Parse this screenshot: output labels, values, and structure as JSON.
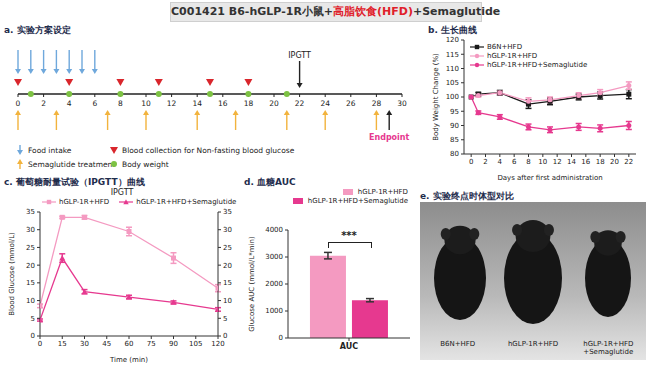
{
  "title": {
    "parts": [
      {
        "text": "C001421 B6-hGLP-1R小鼠+",
        "color": "#333333"
      },
      {
        "text": "高脂饮食(HFD)",
        "color": "#e0202a"
      },
      {
        "text": "+Semaglutide",
        "color": "#333333"
      }
    ]
  },
  "timeline": {
    "title": "a. 实验方案设定",
    "lim": [
      0,
      30
    ],
    "ticks": [
      0,
      2,
      4,
      6,
      8,
      10,
      12,
      14,
      16,
      18,
      20,
      22,
      24,
      26,
      28,
      30
    ],
    "events": [
      {
        "name": "Food intake",
        "marker": "arrow_down",
        "color": "#6fa8dc",
        "days": [
          0,
          1,
          2,
          3,
          4,
          5,
          6
        ]
      },
      {
        "name": "Blood collection for Non-fasting blood glucose",
        "marker": "triangle_down",
        "color": "#d9262c",
        "days": [
          0,
          4,
          8,
          11,
          15,
          18
        ]
      },
      {
        "name": "Semaglutide treatment",
        "marker": "arrow_up",
        "color": "#f2b33d",
        "days": [
          0,
          3,
          7,
          10,
          14,
          17,
          21,
          24,
          28
        ]
      },
      {
        "name": "Body weight",
        "marker": "dot",
        "color": "#7dc243",
        "days": [
          1,
          4,
          8,
          11,
          15,
          18,
          21
        ]
      }
    ],
    "markers": [
      {
        "label": "IPGTT",
        "day": 22,
        "marker": "arrow_down",
        "color": "#222222"
      },
      {
        "label": "Endpoint",
        "day": 29,
        "marker": "arrow_up",
        "color": "#e6398f"
      }
    ]
  },
  "chart_data": [
    {
      "type": "line",
      "title": "b. 生长曲线",
      "x_label": "Days after first administration",
      "y_label": "Body Weight Change (%)",
      "x": [
        0,
        1,
        4,
        8,
        11,
        15,
        18,
        22
      ],
      "xlim": [
        -1,
        23
      ],
      "xticks": [
        0,
        2,
        4,
        6,
        8,
        10,
        12,
        14,
        16,
        18,
        20,
        22
      ],
      "ylim": [
        80,
        120
      ],
      "yticks": [
        80,
        85,
        90,
        95,
        100,
        105,
        110,
        115,
        120
      ],
      "legend": "upper left",
      "series": [
        {
          "name": "B6N+HFD",
          "color": "#1a1a1a",
          "marker": "square",
          "values": [
            100,
            101,
            101.5,
            97.5,
            98.5,
            100,
            100.5,
            101
          ],
          "errors": [
            0,
            0.6,
            0.8,
            1.5,
            1.2,
            1.0,
            1.2,
            1.6
          ]
        },
        {
          "name": "hGLP-1R+HFD",
          "color": "#f49ac1",
          "marker": "circle",
          "values": [
            100,
            100.5,
            101.5,
            98.5,
            99,
            100.5,
            101.5,
            104
          ],
          "errors": [
            0,
            0.5,
            0.7,
            1.2,
            1.0,
            1.0,
            1.1,
            1.3
          ]
        },
        {
          "name": "hGLP-1R+HFD+Semaglutide",
          "color": "#e6398f",
          "marker": "circle",
          "values": [
            100,
            94.5,
            93,
            89.5,
            88.5,
            89.5,
            89,
            90
          ],
          "errors": [
            0,
            0.6,
            0.8,
            1.0,
            1.0,
            1.2,
            1.2,
            1.4
          ]
        }
      ]
    },
    {
      "type": "line",
      "title": "c. 葡萄糖耐量试验（IPGTT）曲线",
      "subtitle": "IPGTT",
      "x_label": "Time (min)",
      "y_label": "Blood Glucose (mmol/L)",
      "x": [
        0,
        15,
        30,
        60,
        90,
        120
      ],
      "xlim": [
        0,
        120
      ],
      "xticks": [
        0,
        15,
        30,
        45,
        60,
        75,
        90,
        105,
        120
      ],
      "ylim": [
        0,
        35
      ],
      "yticks": [
        0,
        5,
        10,
        15,
        20,
        25,
        30,
        35
      ],
      "y2lim": [
        0,
        35
      ],
      "y2ticks": [
        0,
        5,
        10,
        15,
        20,
        25,
        30,
        35
      ],
      "legend": "top",
      "series": [
        {
          "name": "hGLP-1R+HFD",
          "color": "#f49ac1",
          "marker": "square",
          "values": [
            8.5,
            33.5,
            33.5,
            29.5,
            22,
            13.5
          ],
          "errors": [
            0.5,
            0.3,
            0.5,
            1.2,
            1.5,
            1.0
          ]
        },
        {
          "name": "hGLP-1R+HFD+Semaglutide",
          "color": "#e6398f",
          "marker": "triangle",
          "values": [
            4.5,
            22,
            12.5,
            11,
            9.5,
            7.5
          ],
          "errors": [
            0.3,
            1.2,
            0.6,
            0.5,
            0.4,
            0.5
          ]
        }
      ]
    },
    {
      "type": "bar",
      "title": "d. 血糖AUC",
      "y_label": "Glucose AUC (mmol/L*min)",
      "categories": [
        "AUC"
      ],
      "ylim": [
        0,
        4000
      ],
      "yticks": [
        0,
        1000,
        2000,
        3000,
        4000
      ],
      "legend": "top",
      "annotation": "***",
      "series": [
        {
          "name": "hGLP-1R+HFD",
          "color": "#f49ac1",
          "values": [
            3050
          ],
          "errors": [
            120
          ]
        },
        {
          "name": "hGLP-1R+HFD+Semaglutide",
          "color": "#e6398f",
          "values": [
            1400
          ],
          "errors": [
            60
          ]
        }
      ]
    }
  ],
  "photo": {
    "title": "e. 实验终点时体型对比",
    "labels": [
      "B6N+HFD",
      "hGLP-1R+HFD",
      "hGLP-1R+HFD +Semaglutide"
    ]
  }
}
